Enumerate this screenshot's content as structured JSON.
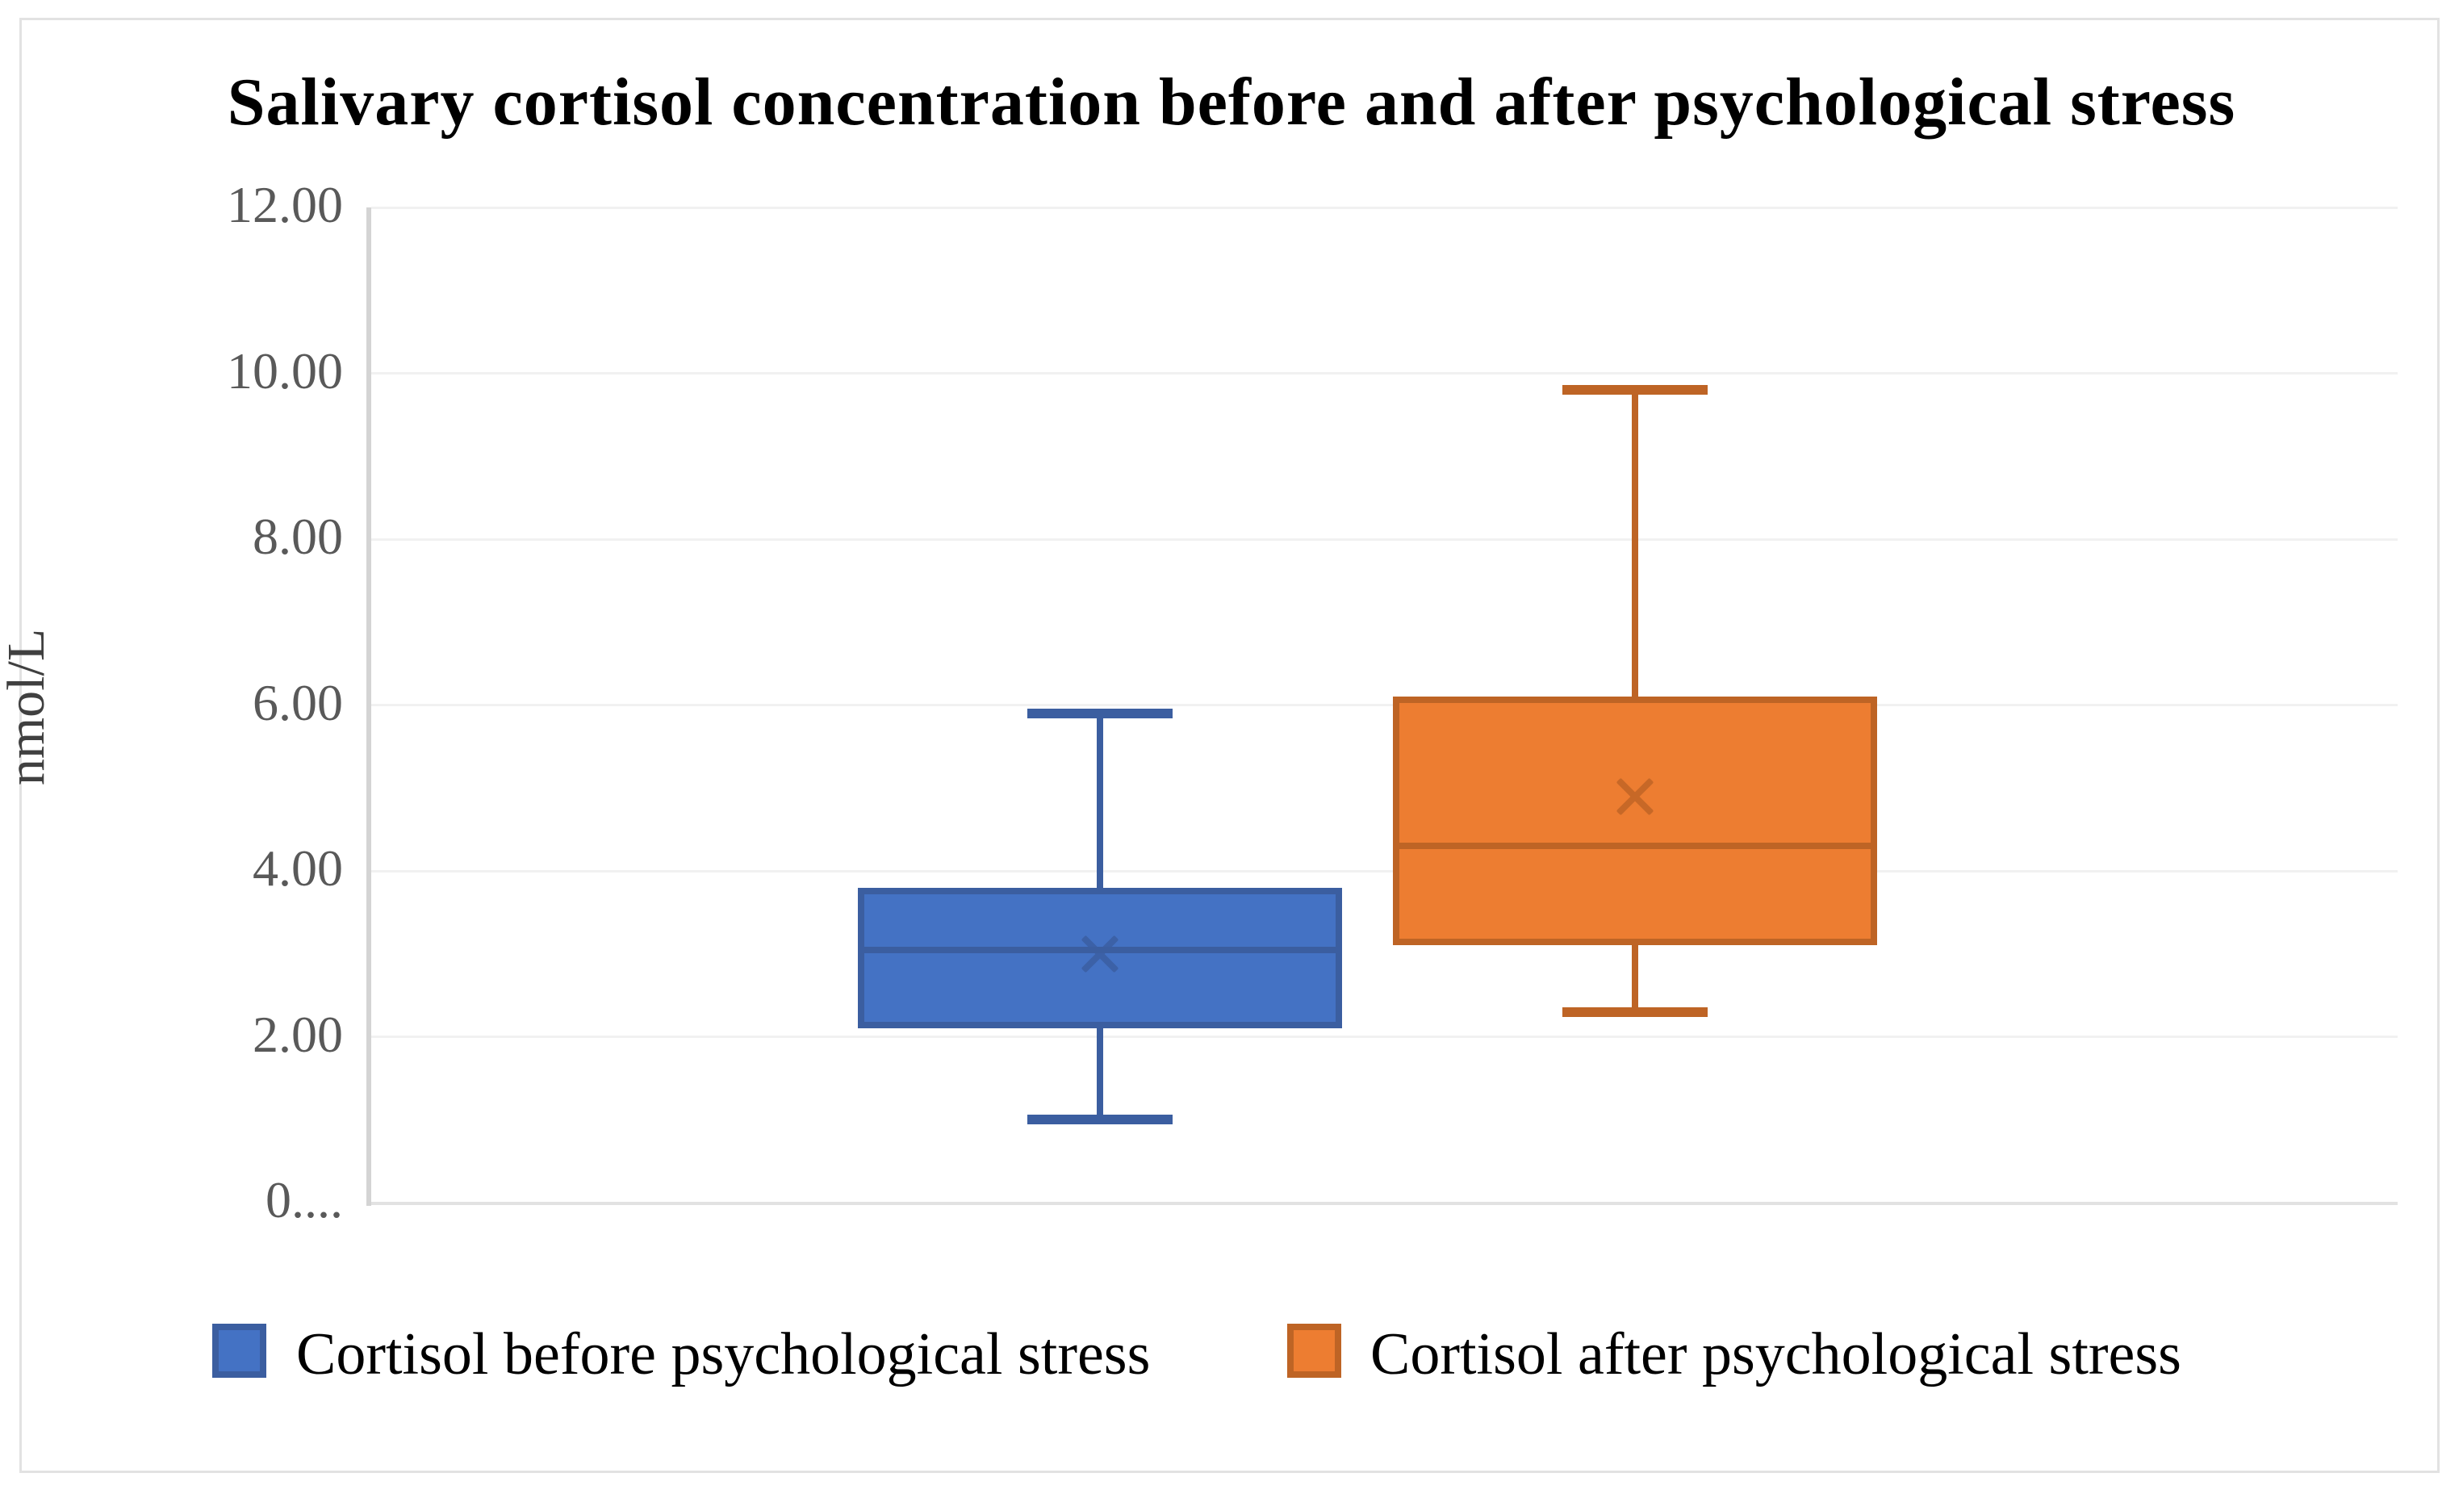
{
  "title": "Salivary cortisol concentration before and after psychological stress",
  "y_axis": {
    "label": "nmol/L",
    "ticks": [
      "12.00",
      "10.00",
      "8.00",
      "6.00",
      "4.00",
      "2.00",
      "0...."
    ],
    "tick_values": [
      12,
      10,
      8,
      6,
      4,
      2,
      0
    ]
  },
  "legend": [
    {
      "label": "Cortisol before psychological stress",
      "color": "#4472C4",
      "border": "#3B5EA0"
    },
    {
      "label": "Cortisol after psychological stress",
      "color": "#ED7D31",
      "border": "#BE6425"
    }
  ],
  "colors": {
    "gridline": "#f1f1f1",
    "axis_line": "#d4d4d4",
    "tick_text": "#595959",
    "title_text": "#000000"
  },
  "chart_data": {
    "type": "boxplot",
    "title": "Salivary cortisol concentration before and after psychological stress",
    "xlabel": "",
    "ylabel": "nmol/L",
    "ylim": [
      0,
      12
    ],
    "grid": true,
    "legend_position": "bottom",
    "series": [
      {
        "name": "Cortisol before psychological stress",
        "color": "#4472C4",
        "border_color": "#3B5EA0",
        "min": 1.0,
        "q1": 2.1,
        "median": 3.05,
        "mean": 3.0,
        "q3": 3.8,
        "max": 5.9
      },
      {
        "name": "Cortisol after psychological stress",
        "color": "#ED7D31",
        "border_color": "#BE6425",
        "min": 2.3,
        "q1": 3.1,
        "median": 4.3,
        "mean": 4.9,
        "q3": 6.1,
        "max": 9.8
      }
    ]
  }
}
